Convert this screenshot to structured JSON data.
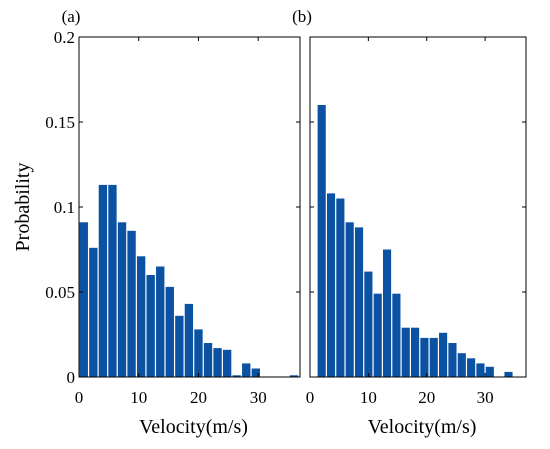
{
  "colors": {
    "bar": "#0c52a3",
    "axis": "#000000"
  },
  "chart_data": [
    {
      "type": "bar",
      "panel_label": "(a)",
      "xlabel": "Velocity(m/s)",
      "ylabel": "Probability",
      "xlim": [
        0,
        37
      ],
      "ylim": [
        0,
        0.2
      ],
      "xticks": [
        0,
        10,
        20,
        30
      ],
      "yticks": [
        0,
        0.05,
        0.1,
        0.15,
        0.2
      ],
      "ytick_labels": [
        "0",
        "0.05",
        "0.1",
        "0.15",
        "0.2"
      ],
      "bin_width": 1.6,
      "x": [
        0.8,
        2.4,
        4.0,
        5.6,
        7.2,
        8.8,
        10.4,
        12.0,
        13.6,
        15.2,
        16.8,
        18.4,
        20.0,
        21.6,
        23.2,
        24.8,
        26.4,
        28.0,
        29.6,
        31.2,
        32.8,
        34.4,
        36.0
      ],
      "values": [
        0.091,
        0.076,
        0.113,
        0.113,
        0.091,
        0.086,
        0.071,
        0.06,
        0.065,
        0.053,
        0.036,
        0.043,
        0.028,
        0.02,
        0.017,
        0.016,
        0.001,
        0.008,
        0.005,
        0.0,
        0.0,
        0.0,
        0.001
      ]
    },
    {
      "type": "bar",
      "panel_label": "(b)",
      "xlabel": "Velocity(m/s)",
      "xlim": [
        0,
        37
      ],
      "ylim": [
        0,
        0.2
      ],
      "xticks": [
        0,
        10,
        20,
        30
      ],
      "bin_width": 1.6,
      "x": [
        2.0,
        3.6,
        5.2,
        6.8,
        8.4,
        10.0,
        11.6,
        13.2,
        14.8,
        16.4,
        18.0,
        19.6,
        21.2,
        22.8,
        24.4,
        26.0,
        27.6,
        29.2,
        30.8,
        32.4,
        34.0
      ],
      "values": [
        0.16,
        0.108,
        0.105,
        0.091,
        0.088,
        0.062,
        0.049,
        0.075,
        0.049,
        0.029,
        0.029,
        0.023,
        0.023,
        0.026,
        0.02,
        0.014,
        0.011,
        0.008,
        0.006,
        0.0,
        0.003
      ]
    }
  ]
}
